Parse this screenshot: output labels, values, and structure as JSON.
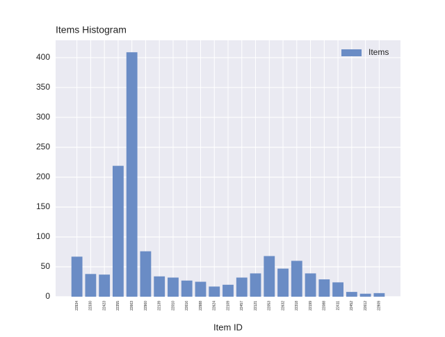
{
  "chart_data": {
    "type": "bar",
    "title": "Items Histogram",
    "x_label": "Item ID",
    "categories": [
      "22934",
      "22330",
      "22423",
      "22355",
      "22663",
      "22960",
      "22139",
      "22010",
      "22616",
      "22988",
      "22624",
      "22109",
      "22457",
      "22121",
      "22053",
      "22632",
      "22318",
      "22199",
      "22088",
      "22411",
      "22452",
      "22612",
      "22909"
    ],
    "values": [
      67,
      38,
      37,
      219,
      409,
      76,
      34,
      32,
      27,
      25,
      17,
      20,
      32,
      39,
      68,
      47,
      60,
      39,
      29,
      24,
      8,
      5,
      6
    ],
    "series_name": "Items",
    "color": "#6a8cc5",
    "ylim": [
      0,
      429
    ],
    "yticks": [
      0,
      50,
      100,
      150,
      200,
      250,
      300,
      350,
      400
    ],
    "grid": true,
    "legend": "upper right"
  }
}
